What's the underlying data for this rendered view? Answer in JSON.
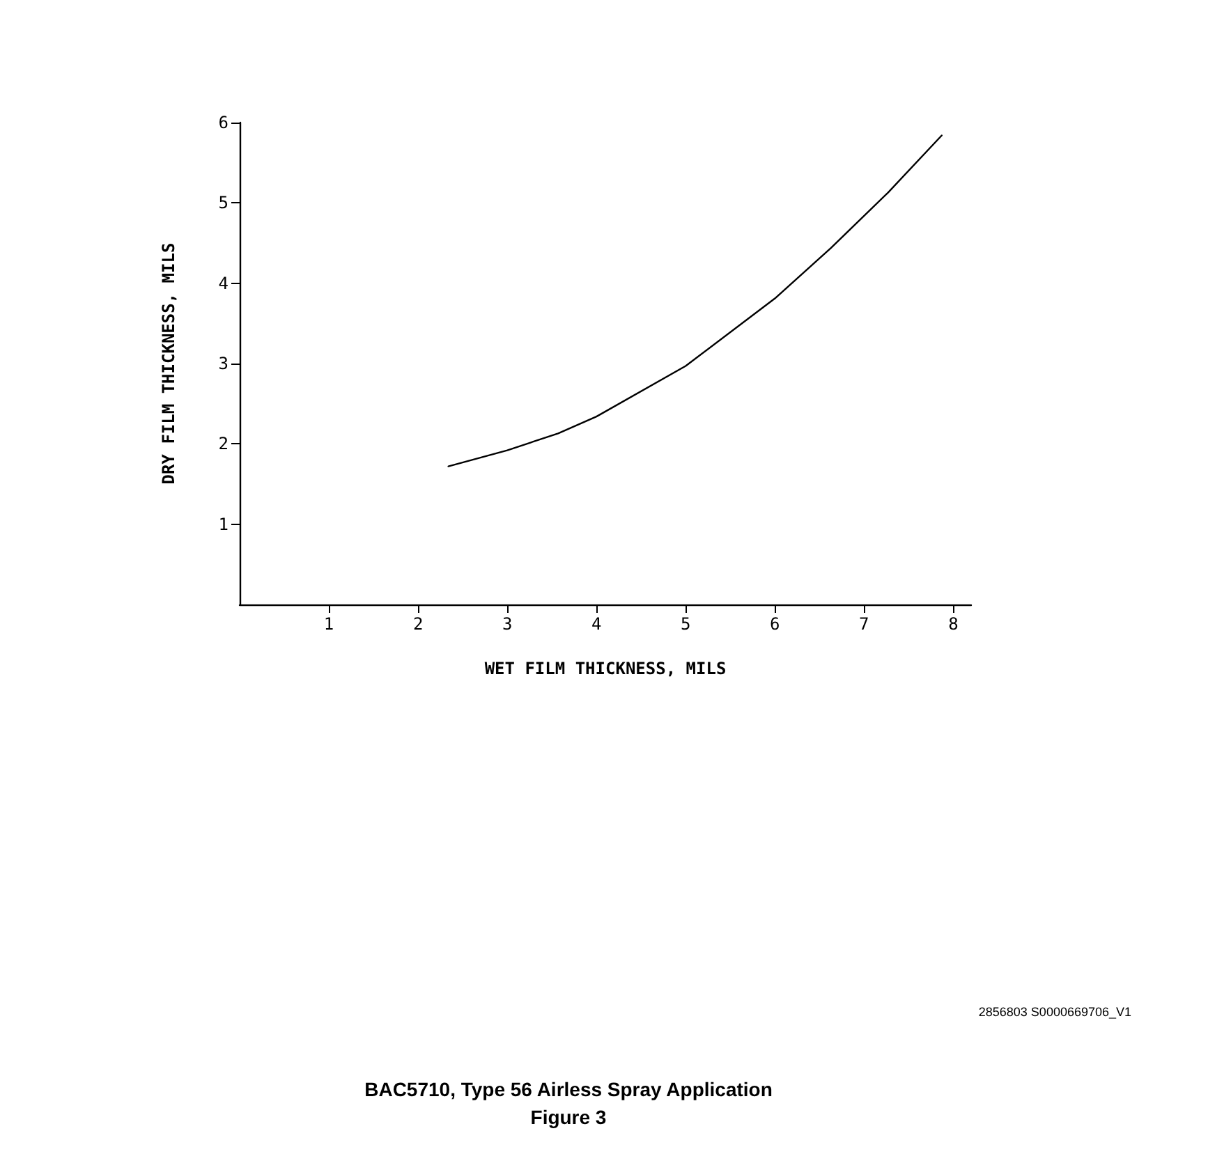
{
  "chart_data": {
    "type": "line",
    "title": "BAC5710, Type 56 Airless Spray Application",
    "subtitle": "Figure 3",
    "xlabel": "WET FILM THICKNESS, MILS",
    "ylabel": "DRY FILM THICKNESS, MILS",
    "annotations": [
      "2856803 S0000669706_V1"
    ],
    "series": [
      {
        "color": "#000000",
        "x": [
          2.34,
          3,
          3.57,
          4,
          5,
          6,
          6.63,
          7,
          7.27,
          7.87
        ],
        "values": [
          1.72,
          1.92,
          2.13,
          2.34,
          2.97,
          3.81,
          4.44,
          4.84,
          5.13,
          5.84
        ]
      }
    ],
    "xlim": [
      0,
      8.2
    ],
    "xticks": [
      1,
      2,
      3,
      4,
      5,
      6,
      7,
      8
    ],
    "ylim": [
      0,
      6
    ],
    "yticks": [
      1,
      2,
      3,
      4,
      5,
      6
    ],
    "grid": false,
    "marker": "none",
    "line_style": "solid"
  }
}
